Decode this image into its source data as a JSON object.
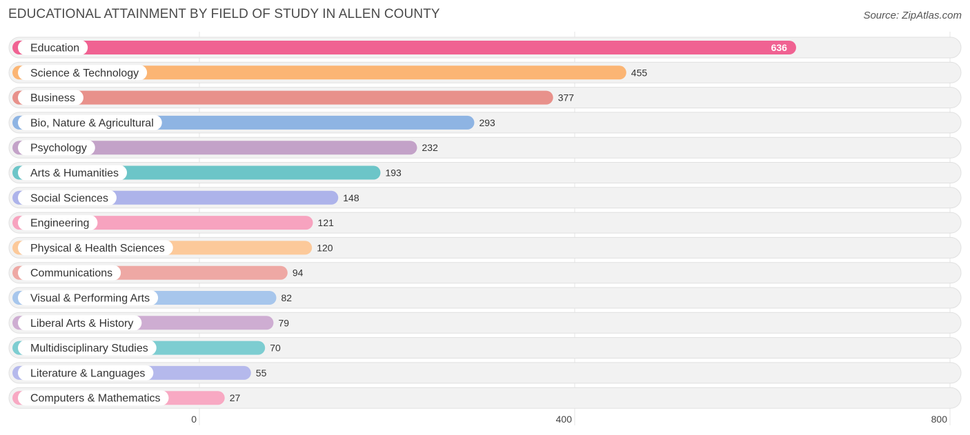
{
  "header": {
    "title": "EDUCATIONAL ATTAINMENT BY FIELD OF STUDY IN ALLEN COUNTY",
    "source": "Source: ZipAtlas.com"
  },
  "chart_data": {
    "type": "bar",
    "orientation": "horizontal",
    "title": "EDUCATIONAL ATTAINMENT BY FIELD OF STUDY IN ALLEN COUNTY",
    "xlabel": "",
    "ylabel": "",
    "xlim": [
      0,
      800
    ],
    "x_ticks": [
      0,
      400,
      800
    ],
    "grid": true,
    "legend": "none",
    "categories": [
      "Education",
      "Science & Technology",
      "Business",
      "Bio, Nature & Agricultural",
      "Psychology",
      "Arts & Humanities",
      "Social Sciences",
      "Engineering",
      "Physical & Health Sciences",
      "Communications",
      "Visual & Performing Arts",
      "Liberal Arts & History",
      "Multidisciplinary Studies",
      "Literature & Languages",
      "Computers & Mathematics"
    ],
    "values": [
      636,
      455,
      377,
      293,
      232,
      193,
      148,
      121,
      120,
      94,
      82,
      79,
      70,
      55,
      27
    ],
    "colors": [
      "#f06292",
      "#fbb574",
      "#e8918b",
      "#8eb4e3",
      "#c3a2c8",
      "#6cc5c8",
      "#adb3ea",
      "#f7a3bf",
      "#fcc99a",
      "#eea8a4",
      "#a7c6ec",
      "#ceadd2",
      "#7dcdd1",
      "#b5b9ec",
      "#f8a9c3"
    ]
  }
}
